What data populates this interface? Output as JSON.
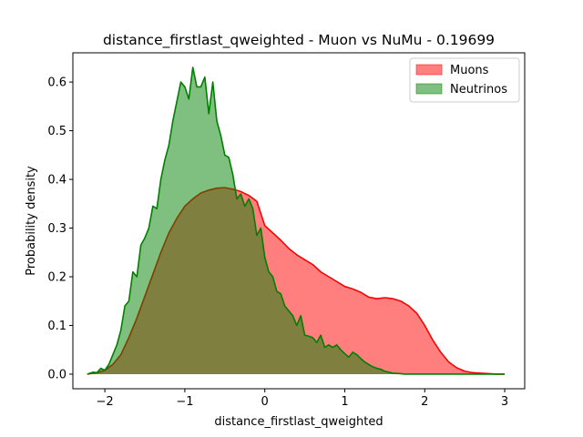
{
  "chart_data": {
    "type": "area",
    "title": "distance_firstlast_qweighted - Muon vs NuMu - 0.19699",
    "xlabel": "distance_firstlast_qweighted",
    "ylabel": "Probability density",
    "xlim": [
      -2.4,
      3.25
    ],
    "ylim": [
      -0.03,
      0.66
    ],
    "xticks": [
      -2,
      -1,
      0,
      1,
      2,
      3
    ],
    "xtick_labels": [
      "−2",
      "−1",
      "0",
      "1",
      "2",
      "3"
    ],
    "yticks": [
      0.0,
      0.1,
      0.2,
      0.3,
      0.4,
      0.5,
      0.6
    ],
    "ytick_labels": [
      "0.0",
      "0.1",
      "0.2",
      "0.3",
      "0.4",
      "0.5",
      "0.6"
    ],
    "grid": false,
    "legend_position": "top-right",
    "series": [
      {
        "name": "Muons",
        "fill_color": "#ff7f7f",
        "line_color": "#ff0000",
        "x": [
          -2.22,
          -2.1,
          -2.0,
          -1.9,
          -1.8,
          -1.7,
          -1.6,
          -1.5,
          -1.4,
          -1.3,
          -1.2,
          -1.1,
          -1.0,
          -0.9,
          -0.8,
          -0.7,
          -0.6,
          -0.5,
          -0.4,
          -0.3,
          -0.2,
          -0.1,
          0.0,
          0.1,
          0.2,
          0.3,
          0.4,
          0.5,
          0.6,
          0.7,
          0.8,
          0.9,
          1.0,
          1.1,
          1.2,
          1.3,
          1.4,
          1.5,
          1.6,
          1.7,
          1.8,
          1.9,
          2.0,
          2.1,
          2.2,
          2.3,
          2.4,
          2.5,
          2.6,
          2.7,
          2.8,
          2.9,
          3.0
        ],
        "y": [
          0.0,
          0.003,
          0.008,
          0.02,
          0.04,
          0.075,
          0.115,
          0.16,
          0.205,
          0.25,
          0.29,
          0.32,
          0.345,
          0.36,
          0.372,
          0.378,
          0.382,
          0.383,
          0.38,
          0.375,
          0.367,
          0.355,
          0.305,
          0.29,
          0.275,
          0.258,
          0.245,
          0.235,
          0.225,
          0.21,
          0.2,
          0.19,
          0.18,
          0.175,
          0.168,
          0.158,
          0.155,
          0.157,
          0.155,
          0.15,
          0.14,
          0.125,
          0.1,
          0.07,
          0.045,
          0.025,
          0.013,
          0.006,
          0.003,
          0.002,
          0.001,
          0.0,
          0.0
        ]
      },
      {
        "name": "Neutrinos",
        "fill_color": "#7fbf7f",
        "line_color": "#008000",
        "x": [
          -2.22,
          -2.15,
          -2.1,
          -2.05,
          -2.0,
          -1.95,
          -1.9,
          -1.85,
          -1.8,
          -1.75,
          -1.7,
          -1.65,
          -1.6,
          -1.55,
          -1.5,
          -1.45,
          -1.4,
          -1.35,
          -1.3,
          -1.25,
          -1.2,
          -1.15,
          -1.1,
          -1.05,
          -1.0,
          -0.95,
          -0.9,
          -0.85,
          -0.8,
          -0.75,
          -0.7,
          -0.65,
          -0.6,
          -0.55,
          -0.5,
          -0.45,
          -0.4,
          -0.35,
          -0.3,
          -0.25,
          -0.2,
          -0.15,
          -0.1,
          -0.05,
          0.0,
          0.05,
          0.1,
          0.15,
          0.2,
          0.25,
          0.3,
          0.35,
          0.4,
          0.45,
          0.5,
          0.55,
          0.6,
          0.65,
          0.7,
          0.75,
          0.8,
          0.85,
          0.9,
          0.95,
          1.0,
          1.05,
          1.1,
          1.15,
          1.2,
          1.25,
          1.3,
          1.35,
          1.4,
          1.45,
          1.5,
          1.55,
          1.6,
          1.65,
          1.7,
          1.75,
          1.8,
          1.85,
          1.9,
          1.95,
          2.0,
          2.1,
          2.2,
          2.3,
          2.4,
          2.5,
          2.6,
          2.7,
          2.8,
          2.9,
          3.0
        ],
        "y": [
          0.0,
          0.004,
          0.003,
          0.012,
          0.008,
          0.02,
          0.04,
          0.06,
          0.09,
          0.14,
          0.15,
          0.21,
          0.2,
          0.265,
          0.28,
          0.3,
          0.345,
          0.34,
          0.4,
          0.44,
          0.47,
          0.52,
          0.56,
          0.6,
          0.59,
          0.565,
          0.63,
          0.59,
          0.59,
          0.61,
          0.535,
          0.6,
          0.52,
          0.49,
          0.45,
          0.445,
          0.41,
          0.36,
          0.37,
          0.345,
          0.36,
          0.34,
          0.285,
          0.3,
          0.24,
          0.21,
          0.2,
          0.17,
          0.165,
          0.14,
          0.13,
          0.12,
          0.1,
          0.12,
          0.08,
          0.078,
          0.075,
          0.065,
          0.08,
          0.055,
          0.06,
          0.055,
          0.06,
          0.05,
          0.042,
          0.035,
          0.045,
          0.04,
          0.032,
          0.025,
          0.02,
          0.015,
          0.012,
          0.01,
          0.006,
          0.004,
          0.002,
          0.0015,
          0.001,
          0.0,
          0.0,
          0.0,
          0.0,
          0.0,
          0.0,
          0.0,
          0.0,
          0.0,
          0.0,
          0.0,
          0.0,
          0.0,
          0.0,
          0.0,
          0.0
        ]
      }
    ]
  }
}
